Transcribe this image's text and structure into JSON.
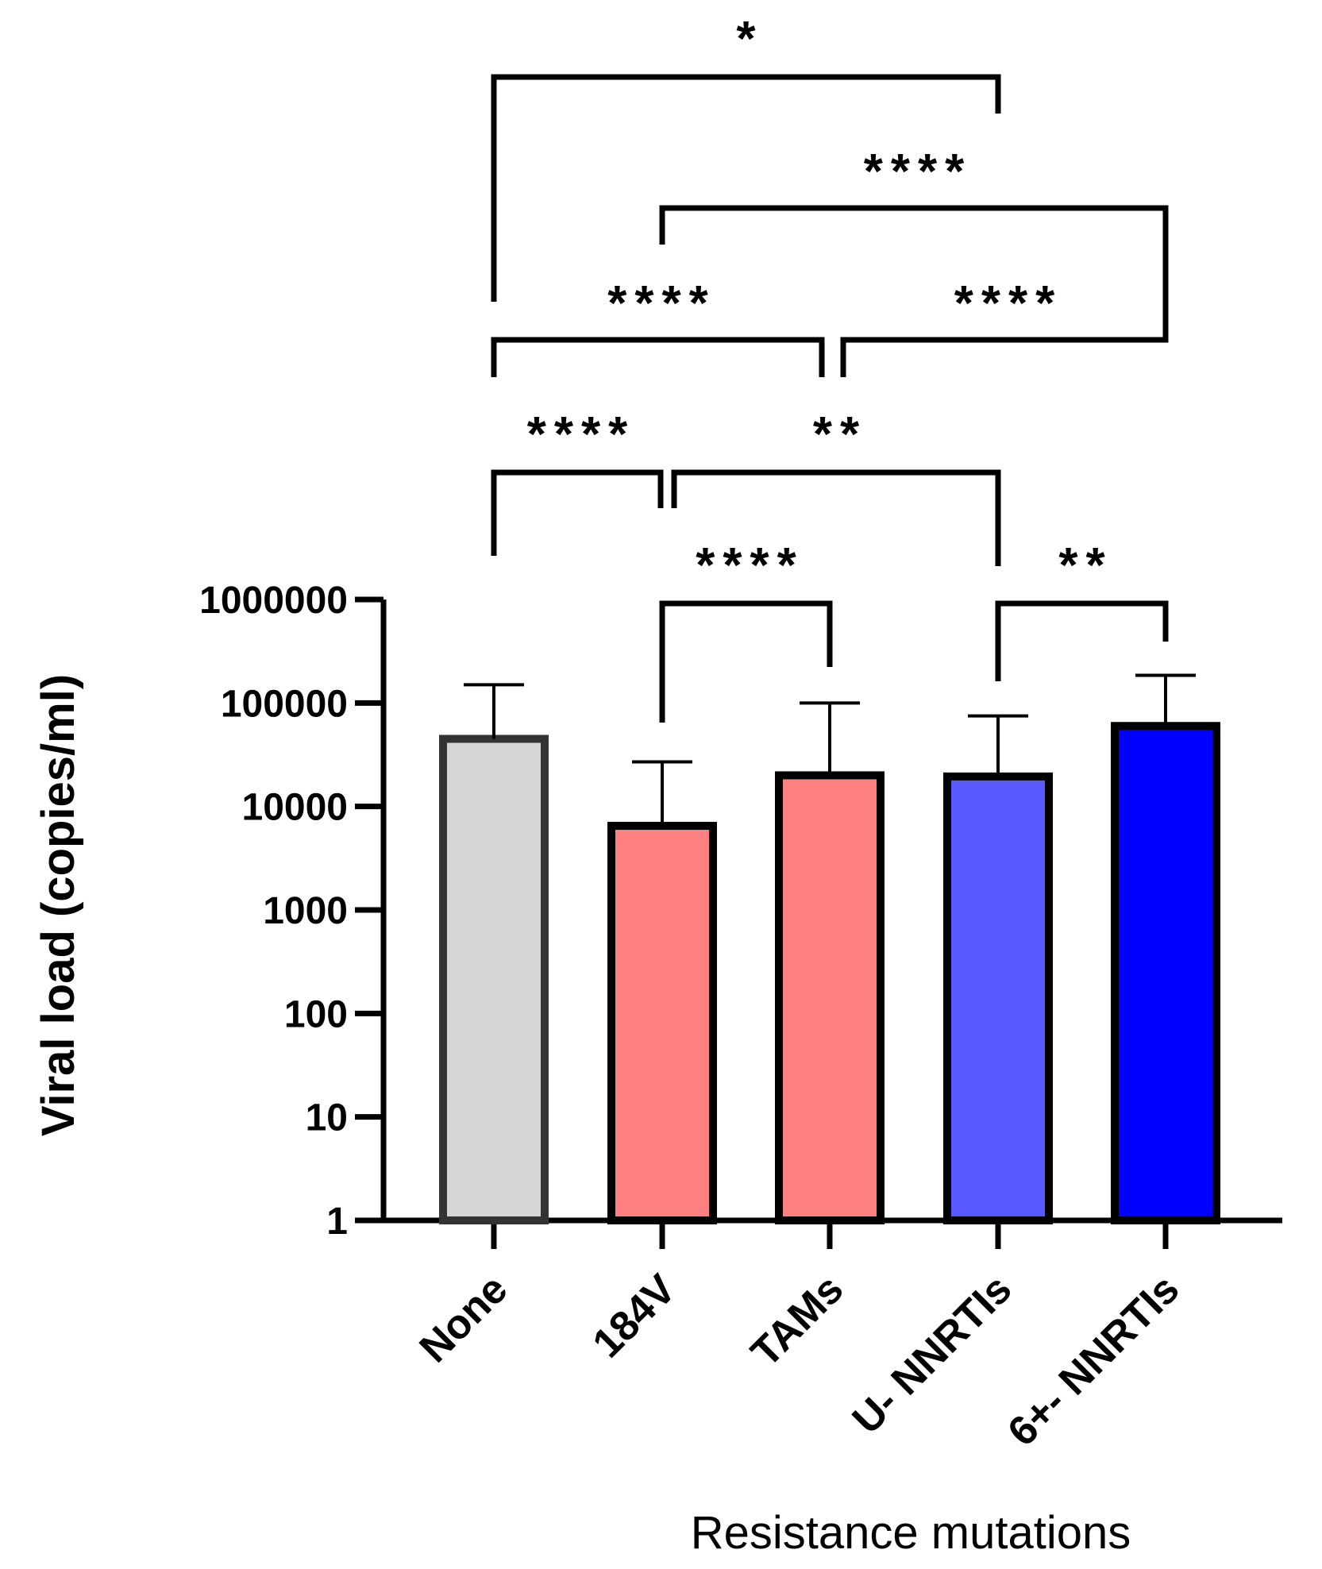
{
  "chart_data": {
    "type": "bar",
    "scale": "log",
    "categories": [
      "None",
      "184V",
      "TAMs",
      "U- NNRTIs",
      "6+- NNRTIs"
    ],
    "values": [
      45000,
      6500,
      20000,
      19500,
      60000
    ],
    "errors_upper": [
      150000,
      27000,
      100000,
      75000,
      185000
    ],
    "colors": [
      "#d6d6d6",
      "#ff8080",
      "#ff8080",
      "#5858ff",
      "#0000ff"
    ],
    "edge_colors": [
      "#333333",
      "#000000",
      "#000000",
      "#000000",
      "#000000"
    ],
    "ylim": [
      1,
      1000000
    ],
    "yticks": [
      1,
      10,
      100,
      1000,
      10000,
      100000,
      1000000
    ],
    "ytick_labels": [
      "1",
      "10",
      "100",
      "1000",
      "10000",
      "100000",
      "1000000"
    ],
    "ylabel": "Viral load (copies/ml)",
    "xlabel": "Resistance mutations",
    "comparisons": [
      {
        "from": 0,
        "to": 3,
        "label": "*"
      },
      {
        "from": 1,
        "to": 4,
        "label": "****"
      },
      {
        "from": 0,
        "to": 2,
        "label": "****"
      },
      {
        "from": 2,
        "to": 4,
        "label": "****"
      },
      {
        "from": 0,
        "to": 1,
        "label": "****"
      },
      {
        "from": 1,
        "to": 3,
        "label": "**"
      },
      {
        "from": 1,
        "to": 2,
        "label": "****"
      },
      {
        "from": 3,
        "to": 4,
        "label": "**"
      }
    ]
  }
}
